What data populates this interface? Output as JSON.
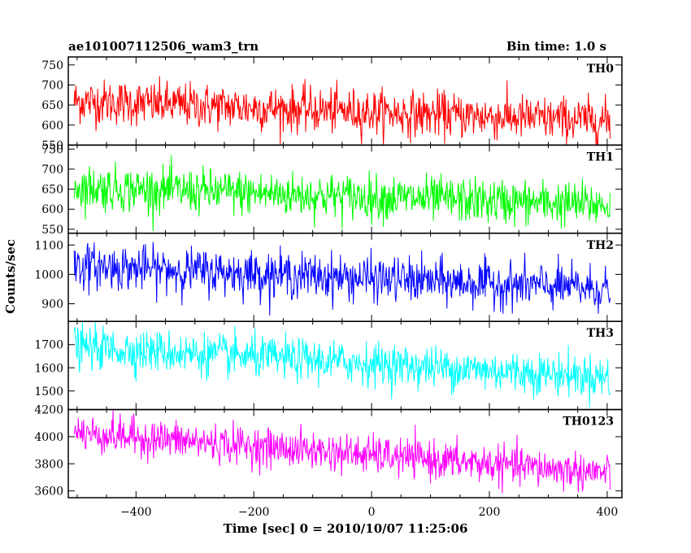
{
  "chart_data": {
    "type": "line",
    "title": "ae101007112506_wam3_trn",
    "subtitle": "Bin time: 1.0 s",
    "xlabel": "Time [sec] 0 = 2010/10/07 11:25:06",
    "ylabel": "Counts/sec",
    "xlim": [
      -515,
      425
    ],
    "x_ticks": [
      -400,
      -200,
      0,
      200,
      400
    ],
    "x_tick_labels": [
      "−400",
      "−200",
      "0",
      "200",
      "400"
    ],
    "x_data_range": [
      -505,
      405
    ],
    "bin_time_s": 1.0,
    "grid": false,
    "panels": [
      {
        "name": "TH0",
        "color": "#ff0000",
        "ylim": [
          550,
          770
        ],
        "y_ticks": [
          550,
          600,
          650,
          700,
          750
        ],
        "trend": {
          "x": [
            -505,
            405
          ],
          "y": [
            660,
            610
          ]
        },
        "noise_sd": 28,
        "spike_range": [
          550,
          770
        ]
      },
      {
        "name": "TH1",
        "color": "#00ff00",
        "ylim": [
          540,
          760
        ],
        "y_ticks": [
          550,
          600,
          650,
          700,
          750
        ],
        "trend": {
          "x": [
            -505,
            405
          ],
          "y": [
            655,
            610
          ]
        },
        "noise_sd": 28,
        "spike_range": [
          545,
          750
        ]
      },
      {
        "name": "TH2",
        "color": "#0000ff",
        "ylim": [
          840,
          1140
        ],
        "y_ticks": [
          900,
          1000,
          1100
        ],
        "trend": {
          "x": [
            -505,
            405
          ],
          "y": [
            1030,
            950
          ]
        },
        "noise_sd": 38,
        "spike_range": [
          860,
          1110
        ]
      },
      {
        "name": "TH3",
        "color": "#00ffff",
        "ylim": [
          1420,
          1800
        ],
        "y_ticks": [
          1500,
          1600,
          1700
        ],
        "trend": {
          "x": [
            -505,
            405
          ],
          "y": [
            1690,
            1560
          ]
        },
        "noise_sd": 45,
        "spike_range": [
          1430,
          1800
        ]
      },
      {
        "name": "TH0123",
        "color": "#ff00ff",
        "ylim": [
          3550,
          4200
        ],
        "y_ticks": [
          3600,
          3800,
          4000,
          4200
        ],
        "trend": {
          "x": [
            -505,
            405
          ],
          "y": [
            4030,
            3730
          ]
        },
        "noise_sd": 70,
        "spike_range": [
          3580,
          4200
        ]
      }
    ]
  }
}
